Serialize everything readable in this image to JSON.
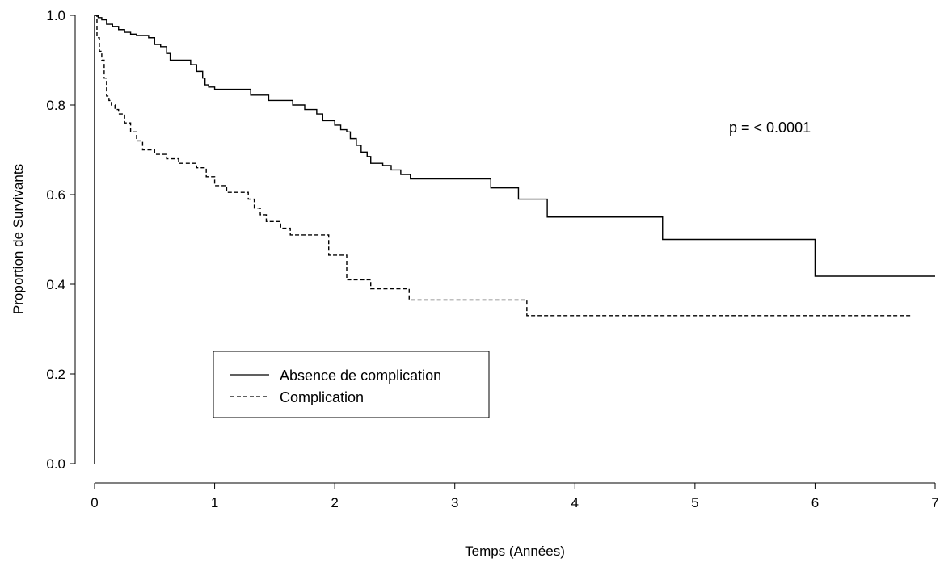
{
  "chart_data": {
    "type": "line",
    "step": true,
    "xlabel": "Temps (Années)",
    "ylabel": "Proportion de Survivants",
    "xlim": [
      0,
      7
    ],
    "ylim": [
      0,
      1
    ],
    "xticks": [
      "0",
      "1",
      "2",
      "3",
      "4",
      "5",
      "6",
      "7"
    ],
    "yticks": [
      "0.0",
      "0.2",
      "0.4",
      "0.6",
      "0.8",
      "1.0"
    ],
    "grid": false,
    "legend_position": "bottom-left",
    "annotation": "p = < 0.0001",
    "series": [
      {
        "name": "Absence de complication",
        "line_style": "solid",
        "color": "#000000",
        "x": [
          0,
          0.03,
          0.06,
          0.1,
          0.15,
          0.2,
          0.25,
          0.3,
          0.35,
          0.45,
          0.5,
          0.55,
          0.6,
          0.63,
          0.8,
          0.85,
          0.9,
          0.92,
          0.95,
          1.0,
          1.3,
          1.45,
          1.65,
          1.75,
          1.85,
          1.9,
          2.0,
          2.05,
          2.1,
          2.13,
          2.18,
          2.22,
          2.27,
          2.3,
          2.4,
          2.47,
          2.55,
          2.63,
          3.3,
          3.53,
          3.77,
          4.73,
          6.0,
          7.0
        ],
        "y": [
          1.0,
          0.995,
          0.99,
          0.98,
          0.975,
          0.968,
          0.962,
          0.958,
          0.955,
          0.95,
          0.935,
          0.93,
          0.915,
          0.9,
          0.89,
          0.875,
          0.86,
          0.845,
          0.84,
          0.835,
          0.822,
          0.81,
          0.8,
          0.79,
          0.78,
          0.765,
          0.755,
          0.745,
          0.74,
          0.725,
          0.71,
          0.695,
          0.685,
          0.67,
          0.665,
          0.655,
          0.645,
          0.635,
          0.615,
          0.59,
          0.55,
          0.5,
          0.418,
          0.418
        ]
      },
      {
        "name": "Complication",
        "line_style": "dashed",
        "color": "#000000",
        "x": [
          0,
          0.02,
          0.04,
          0.06,
          0.08,
          0.1,
          0.12,
          0.14,
          0.17,
          0.2,
          0.25,
          0.3,
          0.35,
          0.4,
          0.5,
          0.6,
          0.7,
          0.85,
          0.93,
          1.0,
          1.1,
          1.28,
          1.33,
          1.38,
          1.43,
          1.55,
          1.63,
          1.95,
          2.1,
          2.3,
          2.62,
          3.6,
          6.8
        ],
        "y": [
          1.0,
          0.95,
          0.92,
          0.9,
          0.86,
          0.82,
          0.81,
          0.8,
          0.79,
          0.78,
          0.76,
          0.74,
          0.72,
          0.7,
          0.69,
          0.68,
          0.67,
          0.66,
          0.64,
          0.62,
          0.605,
          0.59,
          0.57,
          0.555,
          0.54,
          0.525,
          0.51,
          0.465,
          0.41,
          0.39,
          0.365,
          0.33,
          0.33
        ]
      }
    ]
  }
}
